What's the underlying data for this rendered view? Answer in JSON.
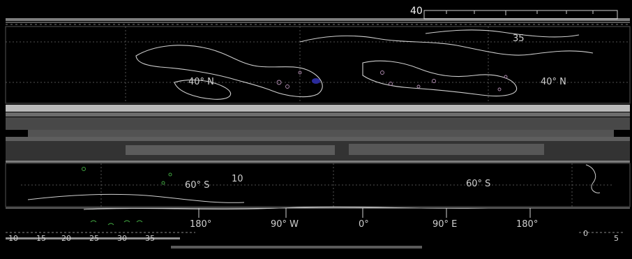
{
  "map": {
    "latitude_labels_left": [
      "40° N",
      "60° S"
    ],
    "latitude_labels_right": [
      "40° N",
      "60° S"
    ],
    "longitude_labels": [
      "180°",
      "90° W",
      "0°",
      "90° E",
      "180°"
    ],
    "contour_labels": [
      "40",
      "35",
      "10"
    ],
    "colorbar_tick_labels": [
      "10",
      "15",
      "20",
      "25",
      "30",
      "35",
      "0",
      "5"
    ]
  }
}
